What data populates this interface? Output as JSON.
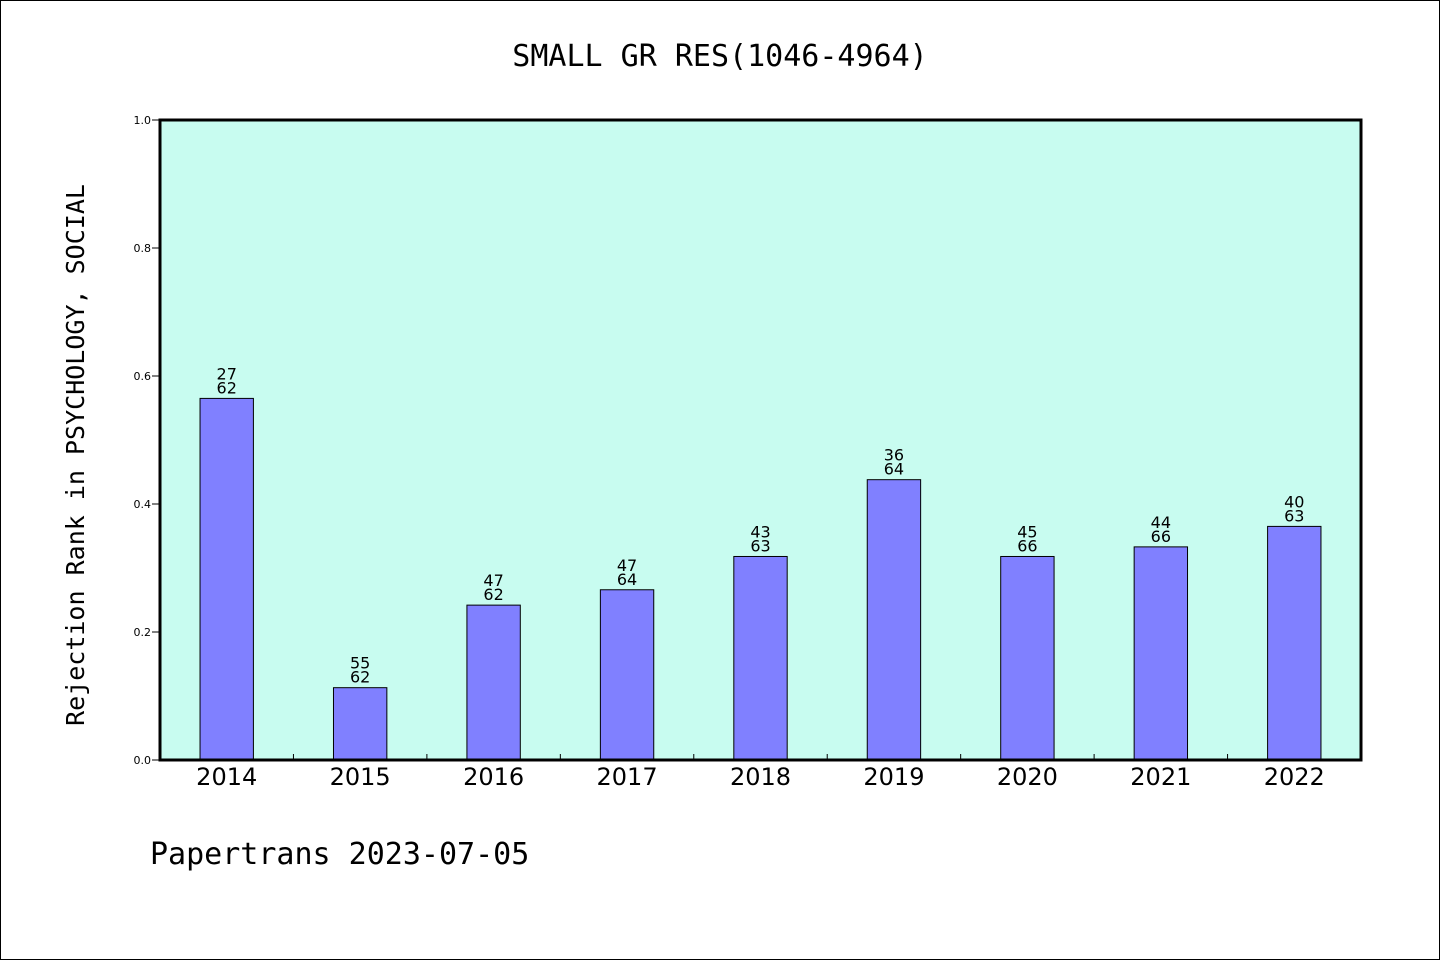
{
  "chart_data": {
    "type": "bar",
    "title": "SMALL GR RES(1046-4964)",
    "ylabel": "Rejection Rank in PSYCHOLOGY, SOCIAL",
    "xlabel": "",
    "categories": [
      "2014",
      "2015",
      "2016",
      "2017",
      "2018",
      "2019",
      "2020",
      "2021",
      "2022"
    ],
    "values": [
      0.565,
      0.113,
      0.242,
      0.266,
      0.318,
      0.438,
      0.318,
      0.333,
      0.365
    ],
    "bar_labels": [
      [
        "27",
        "62"
      ],
      [
        "55",
        "62"
      ],
      [
        "47",
        "62"
      ],
      [
        "47",
        "64"
      ],
      [
        "43",
        "63"
      ],
      [
        "36",
        "64"
      ],
      [
        "45",
        "66"
      ],
      [
        "44",
        "66"
      ],
      [
        "40",
        "63"
      ]
    ],
    "ylim": [
      0.0,
      1.0
    ],
    "yticks": [
      "0.0",
      "0.2",
      "0.4",
      "0.6",
      "0.8",
      "1.0"
    ],
    "grid": false,
    "legend": "none",
    "colors": {
      "plot_background": "#c8fcf0",
      "bar_fill": "#8080ff",
      "bar_stroke": "#000000"
    }
  },
  "footer": {
    "text": "Papertrans 2023-07-05"
  }
}
